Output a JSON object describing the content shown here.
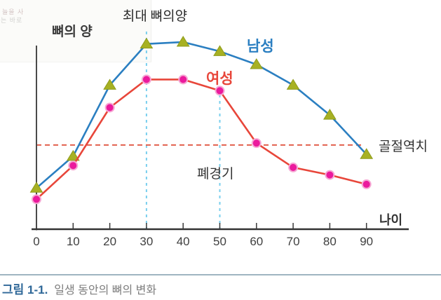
{
  "artifact": {
    "line1": "늘을 사",
    "line2": "는 바로"
  },
  "chart_data": {
    "type": "line",
    "x": [
      0,
      10,
      20,
      30,
      40,
      50,
      60,
      70,
      80,
      90
    ],
    "x_tick_labels": [
      "0",
      "10",
      "20",
      "30",
      "40",
      "50",
      "60",
      "70",
      "80",
      "90"
    ],
    "xlabel": "나이",
    "ylabel": "뼈의 양",
    "ylim": [
      0,
      110
    ],
    "grid": false,
    "legend_position": "inline-annotations",
    "series": [
      {
        "name": "남성",
        "marker": "triangle",
        "line_color": "#2b7fc1",
        "marker_color": "#a7b123",
        "marker_edge": "#8f9c1b",
        "values": [
          22,
          39,
          77,
          99,
          100,
          95,
          88,
          77,
          61,
          40
        ]
      },
      {
        "name": "여성",
        "marker": "circle",
        "line_color": "#e8463a",
        "marker_color": "#eb1a9d",
        "marker_edge": "#f6a8d4",
        "values": [
          16,
          34,
          65,
          80,
          80,
          74,
          46,
          33,
          29,
          24
        ]
      }
    ],
    "annotations": {
      "peak_label": "최대 뼈의양",
      "menopause_label": "폐경기",
      "threshold_label": "골절역치",
      "threshold_value": 45,
      "threshold_line_color": "#e2604d",
      "vline_ages": [
        30,
        50
      ],
      "vline_color": "#79cfee"
    }
  },
  "caption": {
    "number": "그림 1-1.",
    "text": "일생 동안의 뼈의 변화"
  }
}
